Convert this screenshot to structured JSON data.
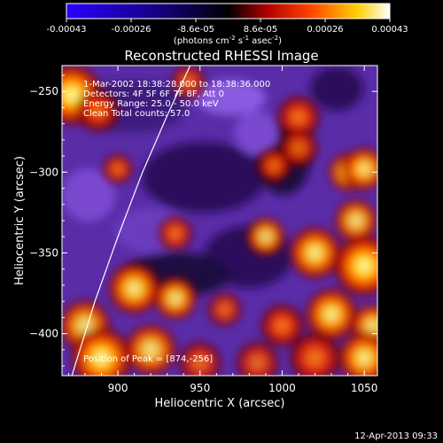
{
  "colorbar": {
    "ticks": [
      "-0.00043",
      "-0.00026",
      "-8.6e-05",
      "8.6e-05",
      "0.00026",
      "0.00043"
    ],
    "units_label": "(photons cm",
    "units_sup1": "-2",
    "units_mid": " s",
    "units_sup2": "-1",
    "units_mid2": " asec",
    "units_sup3": "-2",
    "units_end": ")",
    "range": [
      -0.00043,
      0.00043
    ],
    "colors": [
      "#2a00ff",
      "#000000",
      "#ff0000",
      "#ffff00",
      "#ffffff"
    ]
  },
  "chart_data": {
    "type": "heatmap",
    "title": "Reconstructed RHESSI Image",
    "xlabel": "Heliocentric X (arcsec)",
    "ylabel": "Heliocentric Y (arcsec)",
    "xlim": [
      866,
      1058
    ],
    "ylim": [
      -426,
      -234
    ],
    "x_ticks": [
      {
        "value": 900,
        "label": "900"
      },
      {
        "value": 950,
        "label": "950"
      },
      {
        "value": 1000,
        "label": "1000"
      },
      {
        "value": 1050,
        "label": "1050"
      }
    ],
    "y_ticks": [
      {
        "value": -250,
        "label": "−250"
      },
      {
        "value": -300,
        "label": "−300"
      },
      {
        "value": -350,
        "label": "−350"
      },
      {
        "value": -400,
        "label": "−400"
      }
    ],
    "annotations": [
      "1-Mar-2002 18:38:28.000 to 18:38:36.000",
      "Detectors: 4F 5F 6F 7F 8F, Att 0",
      "Energy Range: 25.0 - 50.0 keV",
      "Clean    Total counts: 57.0"
    ],
    "peak_label": "Position of Peak = [874,-256]",
    "peak": [
      874,
      -256
    ],
    "limb_curve": [
      [
        944,
        -234
      ],
      [
        930,
        -265
      ],
      [
        915,
        -300
      ],
      [
        900,
        -340
      ],
      [
        886,
        -380
      ],
      [
        872,
        -426
      ]
    ],
    "hot_spots": [
      {
        "x": 872,
        "y": -252,
        "intensity": 1.0,
        "radius": 14
      },
      {
        "x": 888,
        "y": -262,
        "intensity": 0.7,
        "radius": 10
      },
      {
        "x": 943,
        "y": -244,
        "intensity": 0.65,
        "radius": 8
      },
      {
        "x": 1010,
        "y": -266,
        "intensity": 0.75,
        "radius": 10
      },
      {
        "x": 1010,
        "y": -285,
        "intensity": 0.7,
        "radius": 9
      },
      {
        "x": 900,
        "y": -298,
        "intensity": 0.7,
        "radius": 7
      },
      {
        "x": 995,
        "y": -296,
        "intensity": 0.75,
        "radius": 8
      },
      {
        "x": 1040,
        "y": -300,
        "intensity": 0.8,
        "radius": 9
      },
      {
        "x": 1050,
        "y": -298,
        "intensity": 0.85,
        "radius": 10
      },
      {
        "x": 1045,
        "y": -330,
        "intensity": 0.8,
        "radius": 10
      },
      {
        "x": 935,
        "y": -338,
        "intensity": 0.7,
        "radius": 8
      },
      {
        "x": 990,
        "y": -340,
        "intensity": 0.8,
        "radius": 9
      },
      {
        "x": 1020,
        "y": -350,
        "intensity": 0.9,
        "radius": 12
      },
      {
        "x": 1050,
        "y": -358,
        "intensity": 1.0,
        "radius": 14
      },
      {
        "x": 910,
        "y": -372,
        "intensity": 0.9,
        "radius": 12
      },
      {
        "x": 935,
        "y": -378,
        "intensity": 0.85,
        "radius": 10
      },
      {
        "x": 965,
        "y": -385,
        "intensity": 0.6,
        "radius": 8
      },
      {
        "x": 1000,
        "y": -395,
        "intensity": 0.75,
        "radius": 10
      },
      {
        "x": 1030,
        "y": -388,
        "intensity": 0.9,
        "radius": 12
      },
      {
        "x": 1055,
        "y": -395,
        "intensity": 0.85,
        "radius": 10
      },
      {
        "x": 880,
        "y": -395,
        "intensity": 0.8,
        "radius": 12
      },
      {
        "x": 890,
        "y": -415,
        "intensity": 0.95,
        "radius": 14
      },
      {
        "x": 920,
        "y": -410,
        "intensity": 0.8,
        "radius": 12
      },
      {
        "x": 950,
        "y": -418,
        "intensity": 0.6,
        "radius": 10
      },
      {
        "x": 985,
        "y": -418,
        "intensity": 0.6,
        "radius": 10
      },
      {
        "x": 1020,
        "y": -415,
        "intensity": 0.75,
        "radius": 12
      },
      {
        "x": 1050,
        "y": -415,
        "intensity": 0.9,
        "radius": 12
      }
    ]
  },
  "footer": {
    "timestamp": "12-Apr-2013 09:33"
  }
}
